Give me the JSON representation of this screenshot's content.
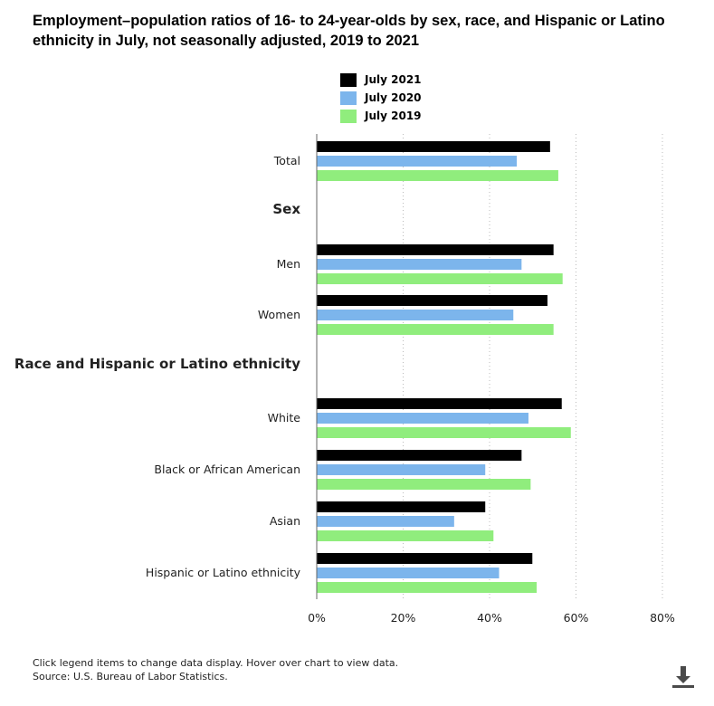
{
  "title": "Employment–population ratios of 16- to 24-year-olds by sex, race, and Hispanic or Latino ethnicity in July, not seasonally adjusted, 2019 to 2021",
  "legend": [
    {
      "label": "July 2021",
      "color": "#000000"
    },
    {
      "label": "July 2020",
      "color": "#7cb5ec"
    },
    {
      "label": "July 2019",
      "color": "#90ed7d"
    }
  ],
  "footer": {
    "note": "Click legend items to change data display. Hover over chart to view data.",
    "source": "Source: U.S. Bureau of Labor Statistics."
  },
  "download_icon": "download-icon",
  "chart_data": {
    "type": "bar",
    "orientation": "horizontal",
    "categories": [
      "Total",
      "Sex",
      "Men",
      "Women",
      "Race and Hispanic or Latino ethnicity",
      "White",
      "Black or African American",
      "Asian",
      "Hispanic or Latino ethnicity"
    ],
    "heading_categories": [
      "Sex",
      "Race and Hispanic or Latino ethnicity"
    ],
    "series": [
      {
        "name": "July 2021",
        "color": "#000000",
        "values": [
          54.0,
          null,
          54.8,
          53.4,
          null,
          56.7,
          47.4,
          39.0,
          49.9
        ]
      },
      {
        "name": "July 2020",
        "color": "#7cb5ec",
        "values": [
          46.3,
          null,
          47.4,
          45.5,
          null,
          49.0,
          39.0,
          31.8,
          42.2
        ]
      },
      {
        "name": "July 2019",
        "color": "#90ed7d",
        "values": [
          55.9,
          null,
          56.9,
          54.8,
          null,
          58.8,
          49.5,
          40.9,
          50.9
        ]
      }
    ],
    "xlim": [
      0,
      80
    ],
    "xticks": [
      "0%",
      "20%",
      "40%",
      "60%",
      "80%"
    ],
    "grid": true,
    "legend_position": "top"
  }
}
